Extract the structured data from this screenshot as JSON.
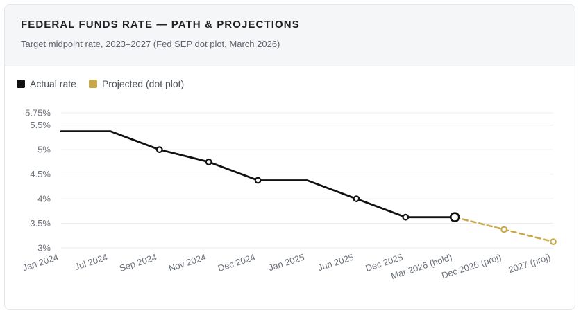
{
  "header": {
    "title": "FEDERAL FUNDS RATE — PATH & PROJECTIONS",
    "subtitle": "Target midpoint rate, 2023–2027 (Fed SEP dot plot, March 2026)"
  },
  "legend": [
    {
      "label": "Actual rate",
      "color": "#111111"
    },
    {
      "label": "Projected (dot plot)",
      "color": "#c9a84c"
    }
  ],
  "chart_data": {
    "type": "line",
    "title": "FEDERAL FUNDS RATE — PATH & PROJECTIONS",
    "subtitle": "Target midpoint rate, 2023–2027 (Fed SEP dot plot, March 2026)",
    "categories": [
      "Jan 2024",
      "Jul 2024",
      "Sep 2024",
      "Nov 2024",
      "Dec 2024",
      "Jan 2025",
      "Jun 2025",
      "Dec 2025",
      "Mar 2026 (hold)",
      "Dec 2026 (proj)",
      "2027 (proj)"
    ],
    "series": [
      {
        "name": "Actual rate",
        "color": "#111111",
        "values": [
          5.375,
          5.375,
          5.0,
          4.75,
          4.375,
          4.375,
          4.0,
          3.625,
          3.625,
          null,
          null
        ]
      },
      {
        "name": "Projected (dot plot)",
        "color": "#c9a84c",
        "dashed": true,
        "values": [
          null,
          null,
          null,
          null,
          null,
          null,
          null,
          null,
          3.625,
          3.375,
          3.125
        ]
      }
    ],
    "markers_on": [
      "Sep 2024",
      "Nov 2024",
      "Dec 2024",
      "Jun 2025",
      "Dec 2025",
      "Mar 2026 (hold)",
      "Dec 2026 (proj)",
      "2027 (proj)"
    ],
    "highlight": "Mar 2026 (hold)",
    "y_ticks": [
      "3%",
      "3.5%",
      "4%",
      "4.5%",
      "5%",
      "5.5%",
      "5.75%"
    ],
    "y_tick_values": [
      3,
      3.5,
      4,
      4.5,
      5,
      5.5,
      5.75
    ],
    "ylim": [
      3,
      5.75
    ],
    "xlabel": "",
    "ylabel": "",
    "grid": true,
    "legend_position": "top-left"
  }
}
